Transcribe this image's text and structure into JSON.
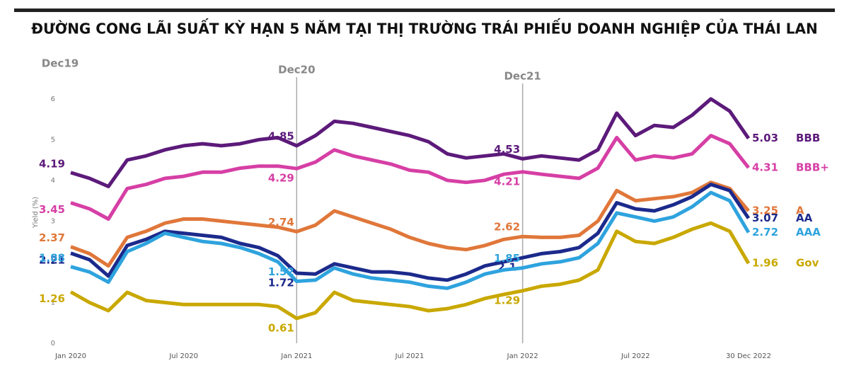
{
  "chart_data": {
    "type": "line",
    "title": "ĐƯỜNG CONG LÃI SUẤT KỲ HẠN 5 NĂM TẠI THỊ TRƯỜNG TRÁI PHIẾU DOANH NGHIỆP CỦA THÁI LAN",
    "y_label": "Yield (%)",
    "categories": [
      "Jan 2020",
      null,
      null,
      null,
      null,
      null,
      "Jul 2020",
      null,
      null,
      null,
      null,
      null,
      "Jan 2021",
      null,
      null,
      null,
      null,
      null,
      "Jul 2021",
      null,
      null,
      null,
      null,
      null,
      "Jan 2022",
      null,
      null,
      null,
      null,
      null,
      "Jul 2022",
      null,
      null,
      null,
      null,
      null,
      "30 Dec 2022"
    ],
    "annotations": [
      {
        "text": "Dec19",
        "x": "Jan 2020"
      },
      {
        "text": "Dec20",
        "x": "Jan 2021"
      },
      {
        "text": "Dec21",
        "x": "Jan 2022"
      }
    ],
    "ylim": [
      0,
      6.5
    ],
    "yticks": [
      0,
      1,
      2,
      3,
      4,
      5,
      6
    ],
    "grid": false,
    "series": [
      {
        "name": "BBB",
        "color": "#5c1a7a",
        "values": [
          4.19,
          4.05,
          3.85,
          4.5,
          4.6,
          4.75,
          4.85,
          4.9,
          4.85,
          4.9,
          5.0,
          5.05,
          4.85,
          5.1,
          5.45,
          5.4,
          5.3,
          5.2,
          5.1,
          4.95,
          4.65,
          4.55,
          4.6,
          4.65,
          4.53,
          4.6,
          4.55,
          4.5,
          4.75,
          5.65,
          5.1,
          5.35,
          5.3,
          5.6,
          6.0,
          5.7,
          5.03
        ]
      },
      {
        "name": "BBB+",
        "color": "#d63fa5",
        "values": [
          3.45,
          3.3,
          3.05,
          3.8,
          3.9,
          4.05,
          4.1,
          4.2,
          4.2,
          4.3,
          4.35,
          4.35,
          4.29,
          4.45,
          4.75,
          4.6,
          4.5,
          4.4,
          4.25,
          4.2,
          4.0,
          3.95,
          4.0,
          4.15,
          4.21,
          4.15,
          4.1,
          4.05,
          4.3,
          5.05,
          4.5,
          4.6,
          4.55,
          4.65,
          5.1,
          4.9,
          4.31
        ]
      },
      {
        "name": "A",
        "color": "#e0773a",
        "values": [
          2.37,
          2.2,
          1.9,
          2.6,
          2.75,
          2.95,
          3.05,
          3.05,
          3.0,
          2.95,
          2.9,
          2.85,
          2.74,
          2.9,
          3.25,
          3.1,
          2.95,
          2.8,
          2.6,
          2.45,
          2.35,
          2.3,
          2.4,
          2.55,
          2.62,
          2.6,
          2.6,
          2.65,
          3.0,
          3.75,
          3.5,
          3.55,
          3.6,
          3.7,
          3.95,
          3.8,
          3.25
        ]
      },
      {
        "name": "AA",
        "color": "#1c2a8c",
        "values": [
          2.21,
          2.05,
          1.65,
          2.4,
          2.55,
          2.75,
          2.7,
          2.65,
          2.6,
          2.45,
          2.35,
          2.15,
          1.72,
          1.7,
          1.95,
          1.85,
          1.75,
          1.75,
          1.7,
          1.6,
          1.55,
          1.7,
          1.9,
          2.0,
          2.1,
          2.2,
          2.25,
          2.35,
          2.7,
          3.45,
          3.3,
          3.25,
          3.4,
          3.6,
          3.9,
          3.75,
          3.07
        ]
      },
      {
        "name": "AAA",
        "color": "#2ea3de",
        "values": [
          1.88,
          1.75,
          1.5,
          2.25,
          2.45,
          2.7,
          2.6,
          2.5,
          2.45,
          2.35,
          2.2,
          2.0,
          1.52,
          1.55,
          1.85,
          1.7,
          1.6,
          1.55,
          1.5,
          1.4,
          1.35,
          1.5,
          1.7,
          1.8,
          1.85,
          1.95,
          2.0,
          2.1,
          2.45,
          3.2,
          3.1,
          3.0,
          3.1,
          3.35,
          3.7,
          3.5,
          2.72
        ]
      },
      {
        "name": "Gov",
        "color": "#c9a800",
        "values": [
          1.26,
          1.0,
          0.8,
          1.25,
          1.05,
          1.0,
          0.95,
          0.95,
          0.95,
          0.95,
          0.95,
          0.9,
          0.61,
          0.75,
          1.25,
          1.05,
          1.0,
          0.95,
          0.9,
          0.8,
          0.85,
          0.95,
          1.1,
          1.2,
          1.29,
          1.4,
          1.45,
          1.55,
          1.8,
          2.75,
          2.5,
          2.45,
          2.6,
          2.8,
          2.95,
          2.75,
          1.96
        ]
      }
    ]
  }
}
